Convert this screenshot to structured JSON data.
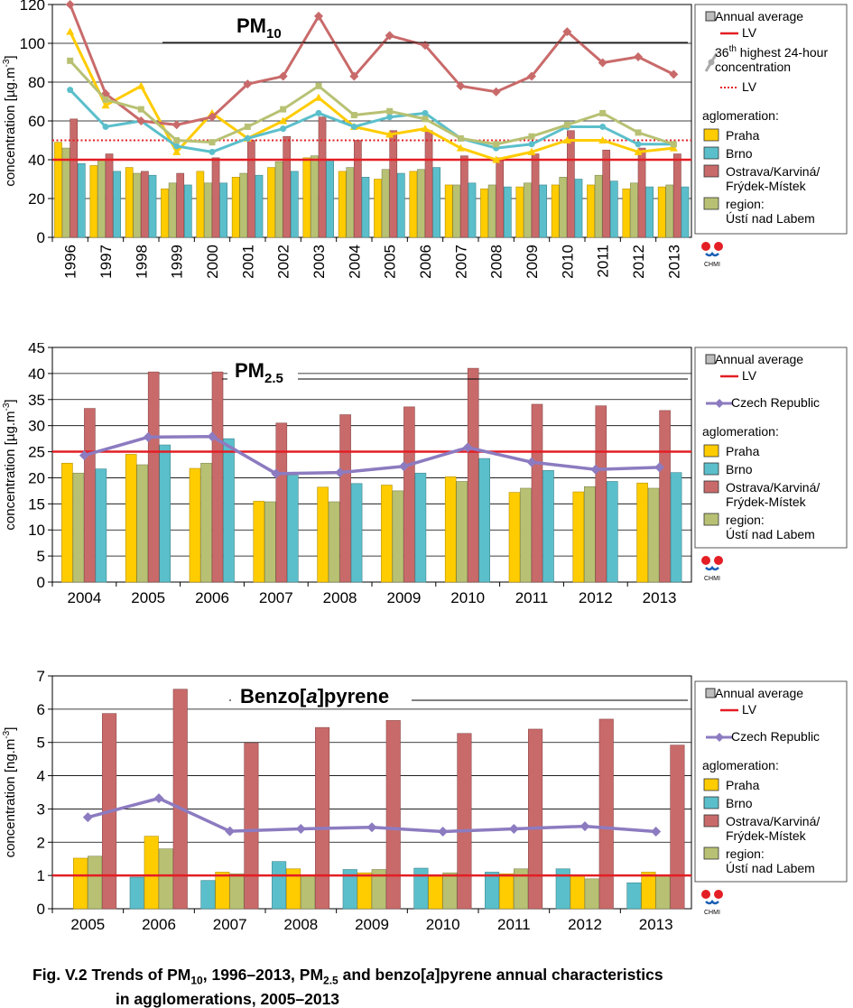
{
  "legend": {
    "annual_average": "Annual average",
    "lv": "LV",
    "hour36_a": "36",
    "hour36_sup": "th",
    "hour36_b": " highest 24-hour",
    "hour36_c": "concentration",
    "lv_dotted": "LV",
    "czech_republic": "Czech Republic",
    "aglomeration": "aglomeration:",
    "praha": "Praha",
    "brno": "Brno",
    "ostrava_1": "Ostrava/Karviná/",
    "ostrava_2": "Frýdek-Místek",
    "region_1": "region:",
    "region_2": "Ústí nad Labem",
    "logo_text": "CHMI"
  },
  "colors": {
    "praha": "#FFCC00",
    "brno": "#5BBFCB",
    "ostrava": "#C96A6A",
    "region": "#B8C173",
    "lv": "#E31E24",
    "czech_republic": "#8C7BC0",
    "annual_average_box": "#BDBDBD"
  },
  "caption": {
    "fig": "Fig. V.2",
    "t1": " Trends of PM",
    "t1_sub": "10",
    "t2": ", 1996–2013, PM",
    "t2_sub": "2.5",
    "t3": " and benzo[",
    "t3_it": "a",
    "t4": "]pyrene annual characteristics",
    "line2": "in agglomerations, 2005–2013"
  },
  "chart_data": [
    {
      "type": "bar",
      "title_main": "PM",
      "title_sub": "10",
      "ylabel_main": "concentration [µg.m",
      "ylabel_sup": "-3",
      "ylabel_end": "]",
      "ylim": [
        0,
        120
      ],
      "ytick_step": 20,
      "categories": [
        "1996",
        "1997",
        "1998",
        "1999",
        "2000",
        "2001",
        "2002",
        "2003",
        "2004",
        "2005",
        "2006",
        "2007",
        "2008",
        "2009",
        "2010",
        "2011",
        "2012",
        "2013"
      ],
      "series": [
        {
          "name": "Praha",
          "key": "praha",
          "values": [
            49,
            37,
            36,
            25,
            34,
            31,
            36,
            41,
            34,
            30,
            34,
            27,
            25,
            26,
            27,
            27,
            25,
            26
          ]
        },
        {
          "name": "region: Ústí nad Labem",
          "key": "region",
          "values": [
            46,
            40,
            33,
            28,
            28,
            33,
            39,
            42,
            36,
            35,
            35,
            27,
            27,
            28,
            31,
            32,
            28,
            27
          ]
        },
        {
          "name": "Ostrava/Karviná/Frýdek-Místek",
          "key": "ostrava",
          "values": [
            61,
            43,
            34,
            33,
            41,
            50,
            52,
            62,
            50,
            55,
            55,
            42,
            41,
            43,
            55,
            45,
            46,
            43
          ]
        },
        {
          "name": "Brno",
          "key": "brno",
          "values": [
            38,
            34,
            32,
            27,
            28,
            32,
            34,
            40,
            31,
            33,
            36,
            28,
            26,
            27,
            30,
            29,
            26,
            26
          ]
        }
      ],
      "lines": [
        {
          "name": "Praha",
          "key": "praha",
          "marker": "triangle",
          "values": [
            106,
            68,
            78,
            44,
            64,
            51,
            60,
            72,
            57,
            53,
            56,
            46,
            40,
            44,
            50,
            50,
            44,
            46
          ]
        },
        {
          "name": "Brno",
          "key": "brno",
          "marker": "circle",
          "values": [
            76,
            57,
            60,
            47,
            44,
            51,
            56,
            64,
            57,
            62,
            64,
            51,
            46,
            48,
            57,
            57,
            48,
            48
          ]
        },
        {
          "name": "Ostrava/Karviná/Frýdek-Místek",
          "key": "ostrava",
          "marker": "diamond",
          "values": [
            120,
            74,
            60,
            58,
            62,
            79,
            83,
            114,
            83,
            104,
            99,
            78,
            75,
            83,
            106,
            90,
            93,
            84
          ]
        },
        {
          "name": "region: Ústí nad Labem",
          "key": "region",
          "marker": "square",
          "values": [
            91,
            71,
            66,
            50,
            49,
            57,
            66,
            78,
            63,
            65,
            61,
            51,
            48,
            52,
            58,
            64,
            54,
            48
          ]
        }
      ],
      "lv_solid": 40,
      "lv_dotted": 50,
      "xtick_rotate": true
    },
    {
      "type": "bar",
      "title_main": "PM",
      "title_sub": "2.5",
      "ylabel_main": "concentration [µg.m",
      "ylabel_sup": "-3",
      "ylabel_end": "]",
      "ylim": [
        0,
        45
      ],
      "ytick_step": 5,
      "categories": [
        "2004",
        "2005",
        "2006",
        "2007",
        "2008",
        "2009",
        "2010",
        "2011",
        "2012",
        "2013"
      ],
      "series": [
        {
          "name": "Praha",
          "key": "praha",
          "values": [
            22.8,
            24.5,
            21.8,
            15.5,
            18.2,
            18.6,
            20.2,
            17.2,
            17.3,
            19.0
          ]
        },
        {
          "name": "region: Ústí nad Labem",
          "key": "region",
          "values": [
            20.9,
            22.5,
            22.8,
            15.4,
            15.4,
            17.5,
            19.3,
            18.0,
            18.3,
            18.0
          ]
        },
        {
          "name": "Ostrava/Karviná/Frýdek-Místek",
          "key": "ostrava",
          "values": [
            33.3,
            40.3,
            40.3,
            30.5,
            32.1,
            33.6,
            41.0,
            34.1,
            33.8,
            32.9
          ]
        },
        {
          "name": "Brno",
          "key": "brno",
          "values": [
            21.7,
            26.3,
            27.5,
            20.5,
            18.9,
            20.9,
            23.7,
            21.4,
            19.3,
            21.0
          ]
        }
      ],
      "lines": [
        {
          "name": "Czech Republic",
          "key": "czech_republic",
          "marker": "diamond",
          "values": [
            24.3,
            27.8,
            27.9,
            20.8,
            21.0,
            22.2,
            25.8,
            23.0,
            21.6,
            22.0
          ]
        }
      ],
      "lv_solid": 25,
      "xtick_rotate": false
    },
    {
      "type": "bar",
      "title_main": "Benzo[",
      "title_it": "a",
      "title_end": "]pyrene",
      "ylabel_main": "concentration [ng.m",
      "ylabel_sup": "-3",
      "ylabel_end": "]",
      "ylim": [
        0,
        7
      ],
      "ytick_step": 1,
      "categories": [
        "2005",
        "2006",
        "2007",
        "2008",
        "2009",
        "2010",
        "2011",
        "2012",
        "2013"
      ],
      "series": [
        {
          "name": "Brno",
          "key": "brno",
          "values": [
            null,
            0.95,
            0.85,
            1.42,
            1.18,
            1.22,
            1.1,
            1.2,
            0.78
          ]
        },
        {
          "name": "Praha",
          "key": "praha",
          "values": [
            1.52,
            2.18,
            1.1,
            1.2,
            1.08,
            0.98,
            1.05,
            1.0,
            1.1
          ]
        },
        {
          "name": "region: Ústí nad Labem",
          "key": "region",
          "values": [
            1.58,
            1.8,
            1.05,
            1.0,
            1.18,
            1.08,
            1.2,
            0.9,
            1.0
          ]
        },
        {
          "name": "Ostrava/Karviná/Frýdek-Místek",
          "key": "ostrava",
          "values": [
            5.87,
            6.6,
            4.98,
            5.45,
            5.66,
            5.27,
            5.4,
            5.7,
            4.92
          ]
        }
      ],
      "lines": [
        {
          "name": "Czech Republic",
          "key": "czech_republic",
          "marker": "diamond",
          "values": [
            2.75,
            3.32,
            2.33,
            2.4,
            2.45,
            2.32,
            2.4,
            2.48,
            2.32
          ]
        }
      ],
      "lv_solid": 1,
      "xtick_rotate": false
    }
  ]
}
